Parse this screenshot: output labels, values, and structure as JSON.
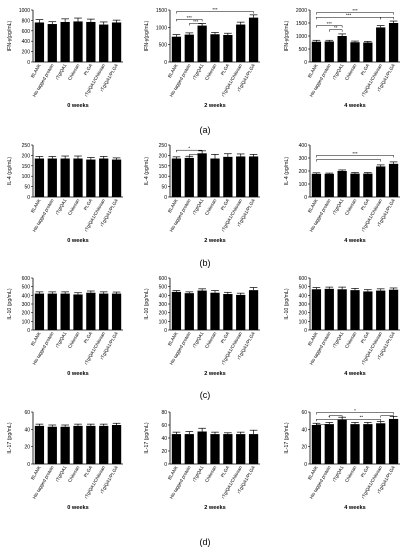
{
  "panel_labels": [
    "(a)",
    "(b)",
    "(c)",
    "(d)"
  ],
  "chart_data": [
    {
      "type": "bar",
      "panel": "(a)",
      "xlabel": "0 weeks",
      "ylabel": "IFN-γ(pg/mL)",
      "categories": [
        "BLANK",
        "His tagged protein",
        "rTgIQA1",
        "Chitosan",
        "PLGA",
        "rTgIQA1/Chitosan",
        "rTgIQA1/PLGA"
      ],
      "values": [
        760,
        730,
        770,
        780,
        770,
        720,
        760
      ],
      "errors": [
        55,
        45,
        60,
        65,
        55,
        50,
        45
      ],
      "ylim": [
        0,
        1000
      ],
      "yticks": [
        0,
        200,
        400,
        600,
        800,
        1000
      ],
      "significance": []
    },
    {
      "type": "bar",
      "panel": "(a)",
      "xlabel": "2 weeks",
      "ylabel": "IFN-γ(pg/mL)",
      "categories": [
        "BLANK",
        "His tagged protein",
        "rTgIQA1",
        "Chitosan",
        "PLGA",
        "rTgIQA1/Chitosan",
        "rTgIQA1/PLGA"
      ],
      "values": [
        730,
        790,
        1050,
        800,
        780,
        1080,
        1280
      ],
      "errors": [
        60,
        50,
        60,
        50,
        50,
        70,
        80
      ],
      "ylim": [
        0,
        1500
      ],
      "yticks": [
        0,
        500,
        1000,
        1500
      ],
      "significance": [
        {
          "from": 0,
          "to": 2,
          "label": "***",
          "level": 0.82
        },
        {
          "from": 1,
          "to": 2,
          "label": "***",
          "level": 0.74
        },
        {
          "from": 0,
          "to": 6,
          "label": "***",
          "level": 0.97
        }
      ]
    },
    {
      "type": "bar",
      "panel": "(a)",
      "xlabel": "4 weeks",
      "ylabel": "IFN-γ(pg/mL)",
      "categories": [
        "BLANK",
        "His tagged protein",
        "rTgIQA1",
        "Chitosan",
        "PLGA",
        "rTgIQA1/Chitosan",
        "rTgIQA1/PLGA"
      ],
      "values": [
        780,
        790,
        1000,
        760,
        750,
        1330,
        1500
      ],
      "errors": [
        55,
        45,
        80,
        45,
        45,
        70,
        75
      ],
      "ylim": [
        0,
        2000
      ],
      "yticks": [
        0,
        500,
        1000,
        1500,
        2000
      ],
      "significance": [
        {
          "from": 1,
          "to": 2,
          "label": "**",
          "level": 0.62
        },
        {
          "from": 0,
          "to": 2,
          "label": "***",
          "level": 0.7
        },
        {
          "from": 0,
          "to": 5,
          "label": "***",
          "level": 0.86
        },
        {
          "from": 0,
          "to": 6,
          "label": "***",
          "level": 0.95
        },
        {
          "from": 5,
          "to": 6,
          "label": "",
          "level": 0.86
        }
      ]
    },
    {
      "type": "bar",
      "panel": "(b)",
      "xlabel": "0 weeks",
      "ylabel": "IL-4 (pg/mL)",
      "categories": [
        "BLANK",
        "His tagged protein",
        "rTgIQA1",
        "Chitosan",
        "PLGA",
        "rTgIQA1/Chitosan",
        "rTgIQA1/PLGA"
      ],
      "values": [
        185,
        185,
        185,
        185,
        180,
        185,
        180
      ],
      "errors": [
        10,
        10,
        12,
        12,
        10,
        10,
        8
      ],
      "ylim": [
        0,
        250
      ],
      "yticks": [
        0,
        50,
        100,
        150,
        200,
        250
      ],
      "significance": []
    },
    {
      "type": "bar",
      "panel": "(b)",
      "xlabel": "2 weeks",
      "ylabel": "IL-4 (pg/mL)",
      "categories": [
        "BLANK",
        "His tagged protein",
        "rTgIQA1",
        "Chitosan",
        "PLGA",
        "rTgIQA1/Chitosan",
        "rTgIQA1/PLGA"
      ],
      "values": [
        185,
        188,
        210,
        185,
        193,
        195,
        195
      ],
      "errors": [
        8,
        8,
        12,
        20,
        15,
        12,
        10
      ],
      "ylim": [
        0,
        250
      ],
      "yticks": [
        0,
        50,
        100,
        150,
        200,
        250
      ],
      "significance": [
        {
          "from": 0,
          "to": 2,
          "label": "*",
          "level": 0.9
        },
        {
          "from": 1,
          "to": 2,
          "label": "",
          "level": 0.82
        }
      ]
    },
    {
      "type": "bar",
      "panel": "(b)",
      "xlabel": "4 weeks",
      "ylabel": "IL-4 (pg/mL)",
      "categories": [
        "BLANK",
        "His tagged protein",
        "rTgIQA1",
        "Chitosan",
        "PLGA",
        "rTgIQA1/Chitosan",
        "rTgIQA1/PLGA"
      ],
      "values": [
        178,
        178,
        200,
        180,
        180,
        235,
        255
      ],
      "errors": [
        8,
        6,
        8,
        8,
        8,
        12,
        15
      ],
      "ylim": [
        0,
        400
      ],
      "yticks": [
        0,
        100,
        200,
        300,
        400
      ],
      "significance": [
        {
          "from": 0,
          "to": 6,
          "label": "***",
          "level": 0.8
        },
        {
          "from": 0,
          "to": 5,
          "label": "",
          "level": 0.72
        }
      ]
    },
    {
      "type": "bar",
      "panel": "(c)",
      "xlabel": "0 weeks",
      "ylabel": "IL-10 (pg/mL)",
      "categories": [
        "BLANK",
        "His tagged protein",
        "rTgIQA1",
        "Chitosan",
        "PLGA",
        "rTgIQA1/Chitosan",
        "rTgIQA1/PLGA"
      ],
      "values": [
        420,
        420,
        420,
        410,
        430,
        420,
        420
      ],
      "errors": [
        20,
        20,
        20,
        20,
        20,
        20,
        18
      ],
      "ylim": [
        0,
        600
      ],
      "yticks": [
        0,
        100,
        200,
        300,
        400,
        500,
        600
      ],
      "significance": []
    },
    {
      "type": "bar",
      "panel": "(c)",
      "xlabel": "2 weeks",
      "ylabel": "IL-10 (pg/mL)",
      "categories": [
        "BLANK",
        "His tagged protein",
        "rTgIQA1",
        "Chitosan",
        "PLGA",
        "rTgIQA1/Chitosan",
        "rTgIQA1/PLGA"
      ],
      "values": [
        440,
        425,
        455,
        430,
        415,
        405,
        460
      ],
      "errors": [
        15,
        15,
        20,
        25,
        20,
        20,
        30
      ],
      "ylim": [
        0,
        600
      ],
      "yticks": [
        0,
        100,
        200,
        300,
        400,
        500,
        600
      ],
      "significance": []
    },
    {
      "type": "bar",
      "panel": "(c)",
      "xlabel": "4 weeks",
      "ylabel": "IL-10 (pg/mL)",
      "categories": [
        "BLANK",
        "His tagged protein",
        "rTgIQA1",
        "Chitosan",
        "PLGA",
        "rTgIQA1/Chitosan",
        "rTgIQA1/PLGA"
      ],
      "values": [
        470,
        475,
        470,
        460,
        445,
        455,
        465
      ],
      "errors": [
        20,
        20,
        25,
        20,
        20,
        20,
        20
      ],
      "ylim": [
        0,
        600
      ],
      "yticks": [
        0,
        100,
        200,
        300,
        400,
        500,
        600
      ],
      "significance": []
    },
    {
      "type": "bar",
      "panel": "(d)",
      "xlabel": "0 weeks",
      "ylabel": "IL-17 (pg/mL)",
      "categories": [
        "BLANK",
        "His tagged protein",
        "rTgIQA1",
        "Chitosan",
        "PLGA",
        "rTgIQA1/Chitosan",
        "rTgIQA1/PLGA"
      ],
      "values": [
        44,
        43,
        43,
        44,
        44,
        44,
        45
      ],
      "errors": [
        2,
        2,
        2,
        2,
        2,
        2,
        2
      ],
      "ylim": [
        0,
        60
      ],
      "yticks": [
        0,
        20,
        40,
        60
      ],
      "significance": []
    },
    {
      "type": "bar",
      "panel": "(d)",
      "xlabel": "2 weeks",
      "ylabel": "IL-17 (pg/mL)",
      "categories": [
        "BLANK",
        "His tagged protein",
        "rTgIQA1",
        "Chitosan",
        "PLGA",
        "rTgIQA1/Chitosan",
        "rTgIQA1/PLGA"
      ],
      "values": [
        46,
        46,
        50,
        46,
        46,
        46,
        46
      ],
      "errors": [
        3,
        4,
        5,
        3,
        2,
        3,
        6
      ],
      "ylim": [
        0,
        80
      ],
      "yticks": [
        0,
        20,
        40,
        60,
        80
      ],
      "significance": []
    },
    {
      "type": "bar",
      "panel": "(d)",
      "xlabel": "4 weeks",
      "ylabel": "IL-17 (pg/mL)",
      "categories": [
        "BLANK",
        "His tagged protein",
        "rTgIQA1",
        "Chitosan",
        "PLGA",
        "rTgIQA1/Chitosan",
        "rTgIQA1/PLGA"
      ],
      "values": [
        45,
        46,
        51,
        46,
        46,
        47,
        52
      ],
      "errors": [
        2,
        2,
        3,
        2,
        2,
        2,
        3
      ],
      "ylim": [
        0,
        60
      ],
      "yticks": [
        0,
        20,
        40,
        60
      ],
      "significance": [
        {
          "from": 0,
          "to": 1,
          "label": "",
          "level": 0.76
        },
        {
          "from": 0,
          "to": 2,
          "label": "*",
          "level": 0.86
        },
        {
          "from": 1,
          "to": 2,
          "label": "",
          "level": 0.93
        },
        {
          "from": 2,
          "to": 5,
          "label": "**",
          "level": 0.86
        },
        {
          "from": 5,
          "to": 6,
          "label": "",
          "level": 0.93
        },
        {
          "from": 0,
          "to": 6,
          "label": "*",
          "level": 0.99
        }
      ]
    }
  ]
}
